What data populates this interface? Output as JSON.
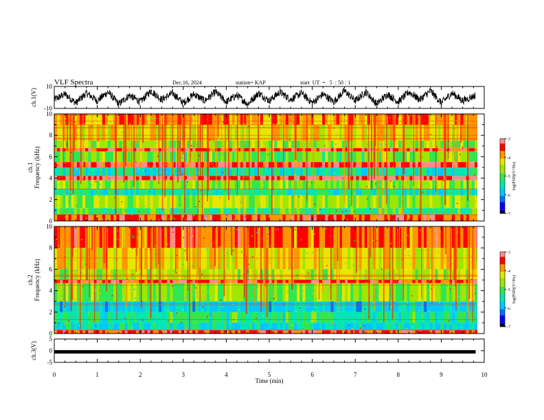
{
  "header": {
    "title": "VLF Spectra",
    "date": "Dec.16, 2024",
    "station": "station= KAP",
    "start": "start  UT  =   5  : 50 : 1"
  },
  "colors": {
    "scale": [
      "#000000",
      "#0000ff",
      "#0070ff",
      "#00c8ff",
      "#00e6b4",
      "#32e650",
      "#a0e600",
      "#e6e600",
      "#ff9600",
      "#ff0000",
      "#ff8c8c",
      "#ffffff"
    ]
  },
  "chart_data": [
    {
      "type": "line",
      "ylabel": "ch.1(V)",
      "ylim": [
        -10,
        10
      ],
      "yticks": [
        "10",
        "-10"
      ],
      "xlim": [
        0,
        10
      ],
      "series": [
        {
          "description": "waveform, roughly -8 to 8 V",
          "x": [
            0,
            0.25,
            0.5,
            0.75,
            1,
            1.25,
            1.5,
            1.75,
            2,
            2.25,
            2.5,
            2.75,
            3,
            3.25,
            3.5,
            3.75,
            4,
            4.25,
            4.5,
            4.75,
            5,
            5.25,
            5.5,
            5.75,
            6,
            6.25,
            6.5,
            6.75,
            7,
            7.25,
            7.5,
            7.75,
            8,
            8.25,
            8.5,
            8.75,
            9,
            9.25,
            9.5,
            9.8
          ],
          "y": [
            -2,
            3,
            -5,
            4,
            -3,
            5,
            -6,
            2,
            -4,
            6,
            -2,
            4,
            -5,
            3,
            -3,
            5,
            -4,
            2,
            -6,
            4,
            -3,
            5,
            -2,
            4,
            -5,
            3,
            -4,
            6,
            -3,
            5,
            -6,
            3,
            -4,
            5,
            -2,
            6,
            -5,
            4,
            -3,
            2
          ]
        }
      ]
    },
    {
      "type": "heatmap",
      "ylabel": "ch.1\nFrequency (kHz)",
      "ylim": [
        0,
        10
      ],
      "yticks": [
        "0",
        "2",
        "4",
        "6",
        "8",
        "10"
      ],
      "xlim": [
        0,
        10
      ],
      "colorbar": {
        "label": "log(PSD)(V²/Hz)",
        "ticks": [
          "-3",
          "-4",
          "-5",
          "-6",
          "-7"
        ],
        "range": [
          -7,
          -3
        ]
      },
      "bands_khz": [
        {
          "from": 9.0,
          "to": 10.0,
          "level": -3.8
        },
        {
          "from": 7.5,
          "to": 9.0,
          "level": -4.2
        },
        {
          "from": 6.8,
          "to": 7.5,
          "level": -4.6
        },
        {
          "from": 6.5,
          "to": 6.8,
          "level": -3.4
        },
        {
          "from": 5.5,
          "to": 6.5,
          "level": -4.8
        },
        {
          "from": 5.0,
          "to": 5.5,
          "level": -3.3
        },
        {
          "from": 4.2,
          "to": 5.0,
          "level": -5.4
        },
        {
          "from": 3.8,
          "to": 4.2,
          "level": -3.2
        },
        {
          "from": 3.0,
          "to": 3.8,
          "level": -4.7
        },
        {
          "from": 2.4,
          "to": 3.0,
          "level": -5.3
        },
        {
          "from": 1.2,
          "to": 2.4,
          "level": -4.5
        },
        {
          "from": 0.6,
          "to": 1.2,
          "level": -5.1
        },
        {
          "from": 0.0,
          "to": 0.6,
          "level": -3.5
        }
      ]
    },
    {
      "type": "heatmap",
      "ylabel": "ch.2\nFrequency (kHz)",
      "ylim": [
        0,
        10
      ],
      "yticks": [
        "0",
        "2",
        "4",
        "6",
        "8",
        "10"
      ],
      "xlim": [
        0,
        10
      ],
      "colorbar": {
        "label": "log(PSD)(V²/Hz)",
        "ticks": [
          "-3",
          "-4",
          "-5",
          "-6",
          "-7"
        ],
        "range": [
          -7,
          -3
        ]
      },
      "bands_khz": [
        {
          "from": 8.0,
          "to": 10.0,
          "level": -3.6
        },
        {
          "from": 6.0,
          "to": 8.0,
          "level": -4.2
        },
        {
          "from": 5.0,
          "to": 6.0,
          "level": -4.5
        },
        {
          "from": 4.7,
          "to": 5.0,
          "level": -3.3
        },
        {
          "from": 3.0,
          "to": 4.7,
          "level": -4.7
        },
        {
          "from": 2.0,
          "to": 3.0,
          "level": -5.6
        },
        {
          "from": 1.0,
          "to": 2.0,
          "level": -5.2
        },
        {
          "from": 0.3,
          "to": 1.0,
          "level": -5.5
        },
        {
          "from": 0.0,
          "to": 0.3,
          "level": -3.5
        }
      ]
    },
    {
      "type": "line",
      "ylabel": "ch.3(V)",
      "ylim": [
        -5,
        5
      ],
      "yticks": [
        "5",
        "0",
        "-5"
      ],
      "xlim": [
        0,
        10
      ],
      "xlabel": "Time (min)",
      "xticks": [
        "0",
        "1",
        "2",
        "3",
        "4",
        "5",
        "6",
        "7",
        "8",
        "9",
        "10"
      ],
      "series": [
        {
          "description": "thick constant line",
          "x": [
            0,
            9.8
          ],
          "y": [
            -0.5,
            -0.5
          ]
        }
      ]
    }
  ]
}
